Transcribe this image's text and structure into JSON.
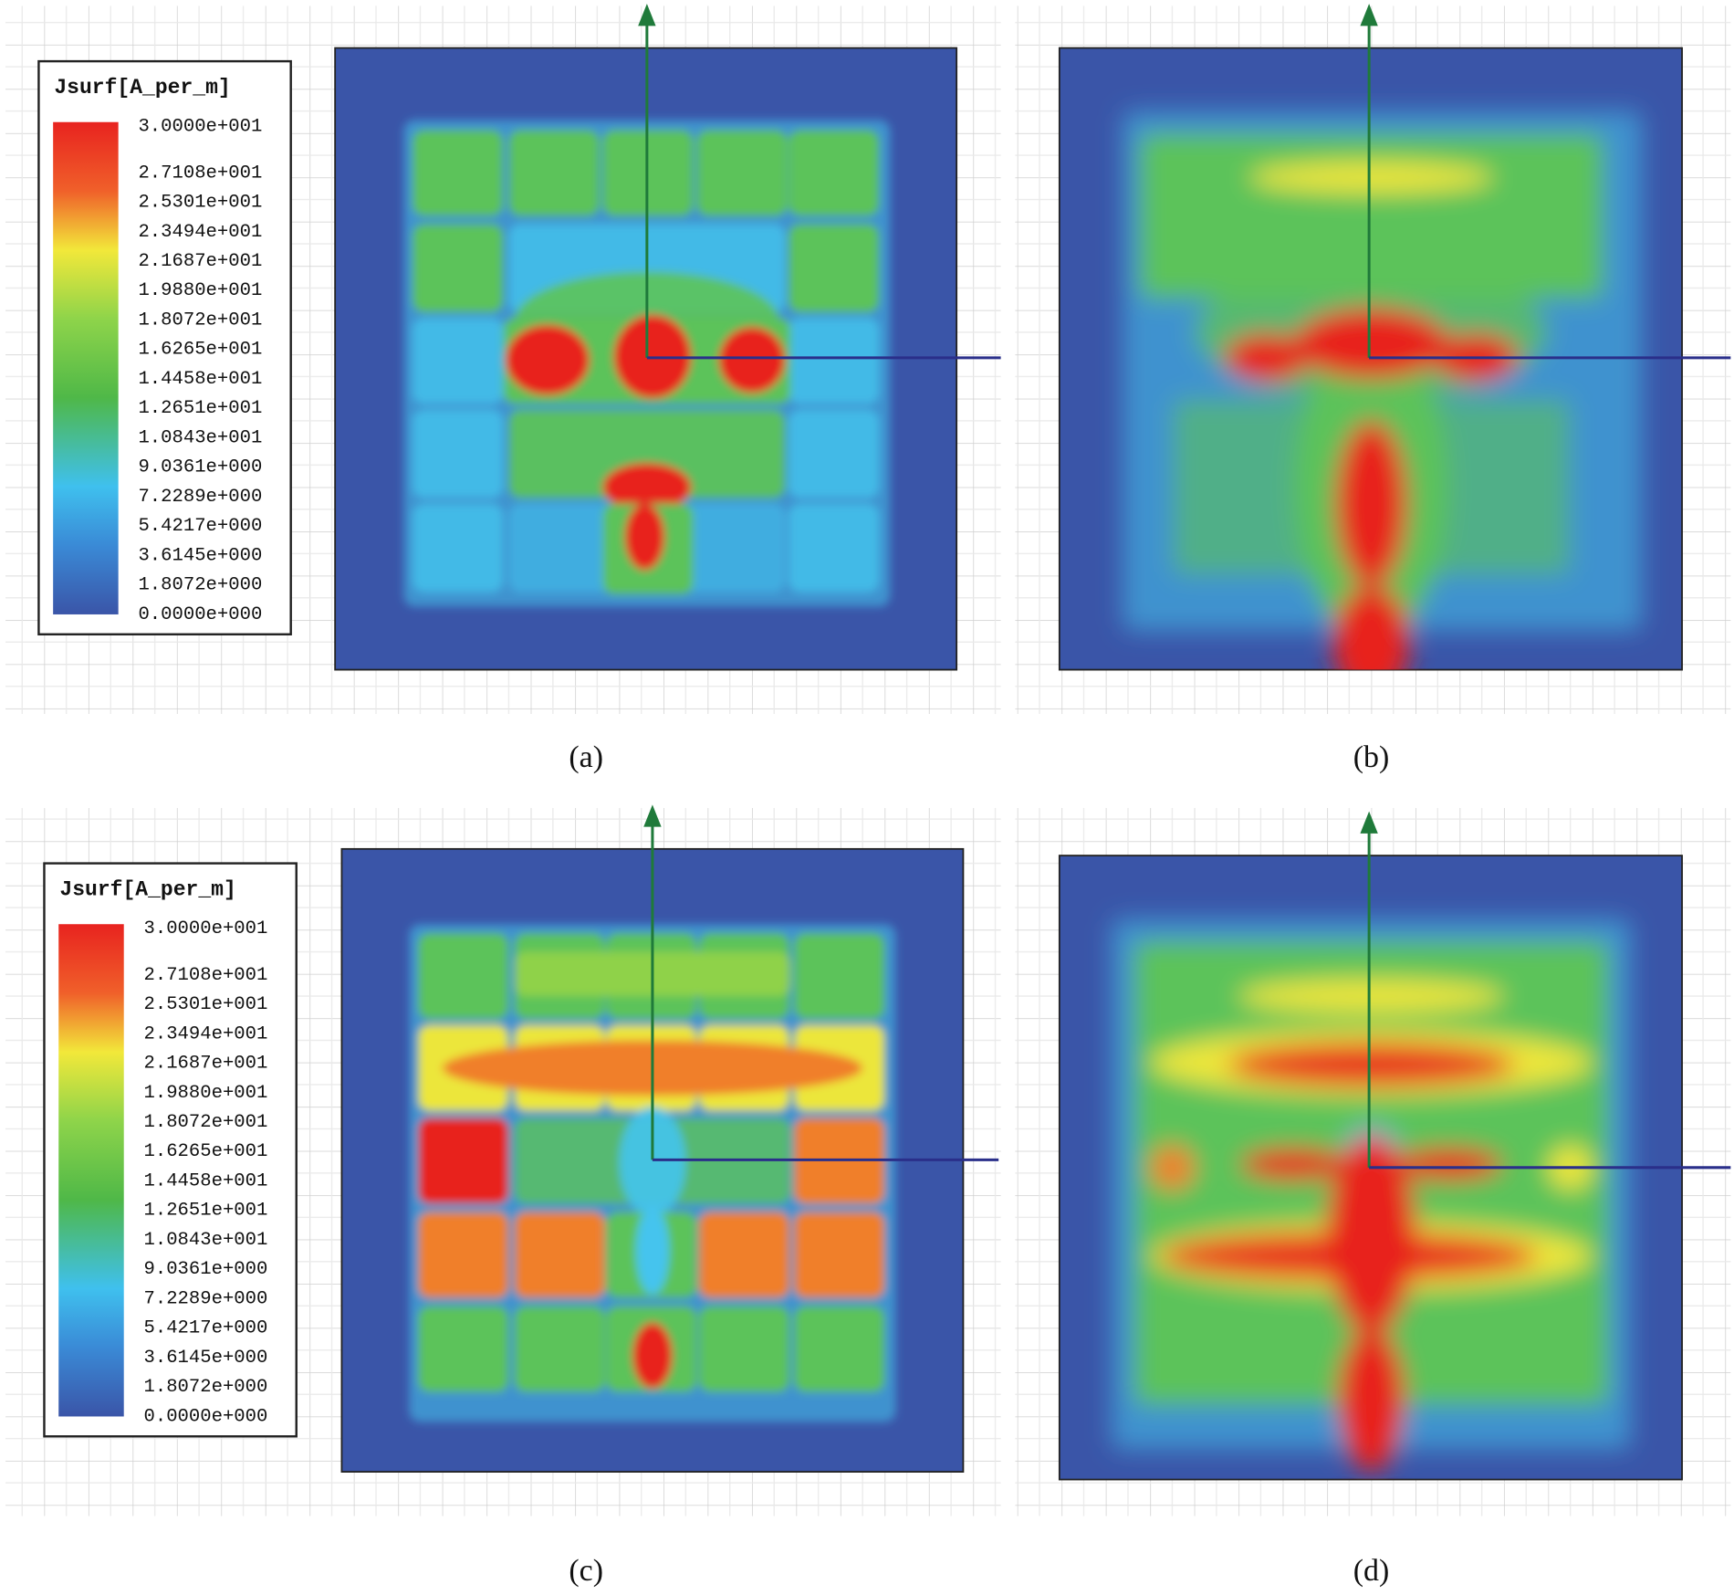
{
  "legends": [
    {
      "title": "Jsurf[A_per_m]",
      "labels": [
        "3.0000e+001",
        "2.7108e+001",
        "2.5301e+001",
        "2.3494e+001",
        "2.1687e+001",
        "1.9880e+001",
        "1.8072e+001",
        "1.6265e+001",
        "1.4458e+001",
        "1.2651e+001",
        "1.0843e+001",
        "9.0361e+000",
        "7.2289e+000",
        "5.4217e+000",
        "3.6145e+000",
        "1.8072e+000",
        "0.0000e+000"
      ]
    },
    {
      "title": "Jsurf[A_per_m]",
      "labels": [
        "3.0000e+001",
        "2.7108e+001",
        "2.5301e+001",
        "2.3494e+001",
        "2.1687e+001",
        "1.9880e+001",
        "1.8072e+001",
        "1.6265e+001",
        "1.4458e+001",
        "1.2651e+001",
        "1.0843e+001",
        "9.0361e+000",
        "7.2289e+000",
        "5.4217e+000",
        "3.6145e+000",
        "1.8072e+000",
        "0.0000e+000"
      ]
    }
  ],
  "captions": [
    "(a)",
    "(b)",
    "(c)",
    "(d)"
  ]
}
